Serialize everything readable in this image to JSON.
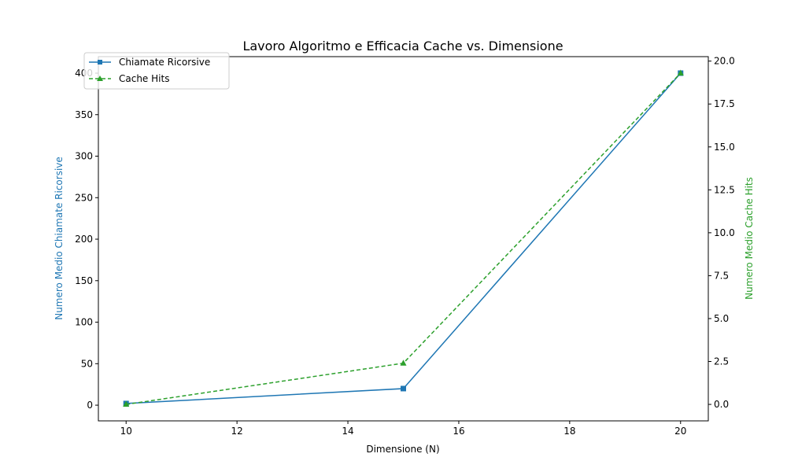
{
  "chart_data": {
    "type": "line",
    "title": "Lavoro Algoritmo e Efficacia Cache vs. Dimensione",
    "xlabel": "Dimensione (N)",
    "ylabel": "Numero Medio Chiamate Ricorsive",
    "y2label": "Numero Medio Cache Hits",
    "x": [
      10,
      15,
      20
    ],
    "xlim": [
      9.5,
      20.5
    ],
    "ylim": [
      -18.9,
      419.9
    ],
    "y2lim": [
      -0.96,
      20.26
    ],
    "xticks": [
      10,
      12,
      14,
      16,
      18,
      20
    ],
    "yticks": [
      0,
      50,
      100,
      150,
      200,
      250,
      300,
      350,
      400
    ],
    "y2ticks": [
      "0.0",
      "2.5",
      "5.0",
      "7.5",
      "10.0",
      "12.5",
      "15.0",
      "17.5",
      "20.0"
    ],
    "grid": false,
    "legend_position": "top-left",
    "series": [
      {
        "name": "Chiamate Ricorsive",
        "axis": "left",
        "values": [
          2,
          20,
          400
        ],
        "color": "#1f77b4",
        "line_style": "solid",
        "marker": "square"
      },
      {
        "name": "Cache Hits",
        "axis": "right",
        "values": [
          0.0,
          2.4,
          19.3
        ],
        "color": "#2ca02c",
        "line_style": "dashed",
        "marker": "triangle"
      }
    ]
  }
}
